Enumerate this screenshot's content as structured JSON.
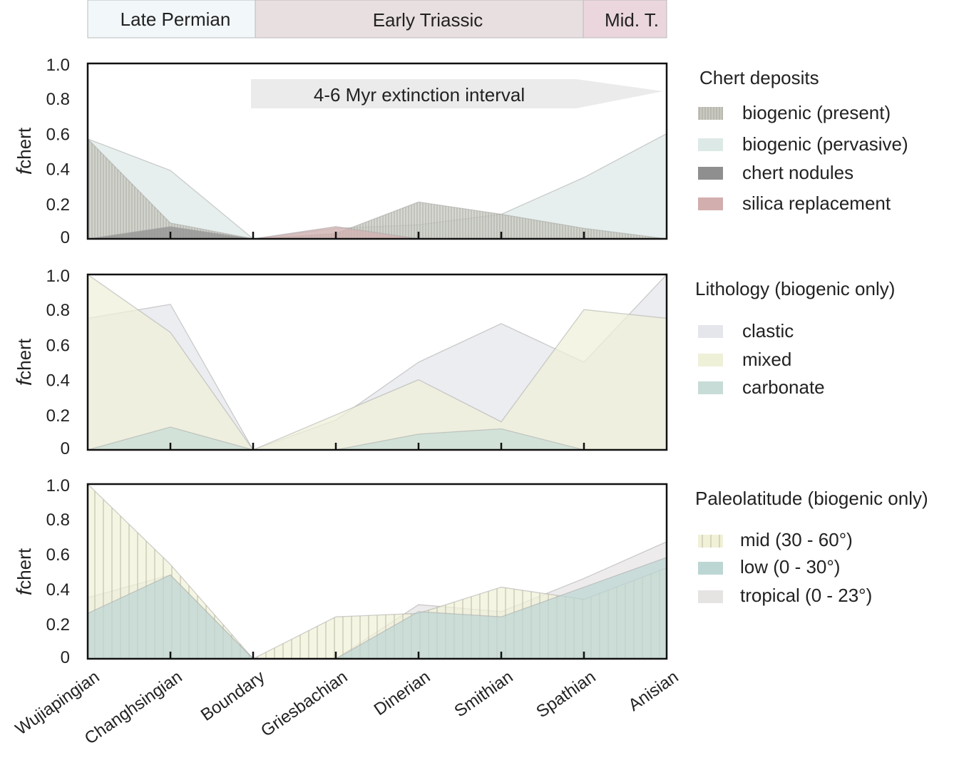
{
  "colors": {
    "biogenic_present": "#c9c9c0",
    "biogenic_pervasive": "#dce9e6",
    "chert_nodules": "#8f8f8f",
    "silica_replacement": "#d3aeae",
    "clastic": "#e4e6ec",
    "mixed": "#eff0d8",
    "carbonate": "#c7dcd7",
    "mid": "#f1f1d8",
    "low": "#bcd6d3",
    "tropical": "#e6e3e3",
    "late_permian": "#f2f7fa",
    "early_triassic": "#e8dfe0",
    "mid_triassic": "#ead6dc"
  },
  "periods": [
    {
      "label": "Late Permian",
      "color_key": "late_permian"
    },
    {
      "label": "Early Triassic",
      "color_key": "early_triassic"
    },
    {
      "label": "Mid. T.",
      "color_key": "mid_triassic"
    }
  ],
  "chart_data": [
    {
      "type": "area",
      "panel": "top",
      "ylabel_italic": "f",
      "ylabel_rest": "chert",
      "ylim": [
        0,
        1
      ],
      "yticks": [
        "0",
        "0.2",
        "0.4",
        "0.6",
        "0.8",
        "1.0"
      ],
      "categories": [
        "Wujiapingian",
        "Changhsingian",
        "Boundary",
        "Griesbachian",
        "Dinerian",
        "Smithian",
        "Spathian",
        "Anisian"
      ],
      "annotation": "4-6 Myr extinction interval",
      "legend_title": "Chert deposits",
      "legend_placement": "right",
      "series": [
        {
          "name": "biogenic (pervasive)",
          "color_key": "biogenic_pervasive",
          "values": [
            0.57,
            0.39,
            0.0,
            0.06,
            0.08,
            0.14,
            0.35,
            0.6
          ]
        },
        {
          "name": "biogenic (present)",
          "color_key": "biogenic_present",
          "hatch": true,
          "values": [
            0.57,
            0.09,
            0.0,
            0.03,
            0.21,
            0.14,
            0.06,
            0.0
          ]
        },
        {
          "name": "chert nodules",
          "color_key": "chert_nodules",
          "values": [
            0.0,
            0.07,
            0.0,
            0.0,
            0.0,
            0.0,
            0.0,
            0.0
          ]
        },
        {
          "name": "silica replacement",
          "color_key": "silica_replacement",
          "values": [
            0.0,
            0.0,
            0.0,
            0.07,
            0.0,
            0.0,
            0.0,
            0.0
          ]
        }
      ]
    },
    {
      "type": "area",
      "panel": "middle",
      "ylabel_italic": "f",
      "ylabel_rest": "chert",
      "ylim": [
        0,
        1
      ],
      "yticks": [
        "0",
        "0.2",
        "0.4",
        "0.6",
        "0.8",
        "1.0"
      ],
      "categories": [
        "Wujiapingian",
        "Changhsingian",
        "Boundary",
        "Griesbachian",
        "Dinerian",
        "Smithian",
        "Spathian",
        "Anisian"
      ],
      "legend_title": "Lithology (biogenic only)",
      "legend_placement": "right",
      "series": [
        {
          "name": "clastic",
          "color_key": "clastic",
          "values": [
            0.75,
            0.83,
            0.0,
            0.17,
            0.5,
            0.72,
            0.5,
            1.0
          ]
        },
        {
          "name": "mixed",
          "color_key": "mixed",
          "values": [
            1.0,
            0.67,
            0.0,
            0.2,
            0.4,
            0.16,
            0.8,
            0.75
          ]
        },
        {
          "name": "carbonate",
          "color_key": "carbonate",
          "values": [
            0.0,
            0.13,
            0.0,
            0.0,
            0.09,
            0.12,
            0.0,
            0.0
          ]
        }
      ]
    },
    {
      "type": "area",
      "panel": "bottom",
      "ylabel_italic": "f",
      "ylabel_rest": "chert",
      "ylim": [
        0,
        1
      ],
      "yticks": [
        "0",
        "0.2",
        "0.4",
        "0.6",
        "0.8",
        "1.0"
      ],
      "categories": [
        "Wujiapingian",
        "Changhsingian",
        "Boundary",
        "Griesbachian",
        "Dinerian",
        "Smithian",
        "Spathian",
        "Anisian"
      ],
      "legend_title": "Paleolatitude (biogenic only)",
      "legend_placement": "right",
      "series": [
        {
          "name": "tropical (0 - 23°)",
          "color_key": "tropical",
          "values": [
            0.35,
            0.48,
            0.0,
            0.0,
            0.31,
            0.27,
            0.46,
            0.67
          ]
        },
        {
          "name": "mid (30 - 60°)",
          "color_key": "mid",
          "hatch": true,
          "values": [
            1.0,
            0.54,
            0.0,
            0.24,
            0.26,
            0.41,
            0.34,
            0.52
          ]
        },
        {
          "name": "low (0 - 30°)",
          "color_key": "low",
          "values": [
            0.26,
            0.48,
            0.0,
            0.0,
            0.27,
            0.24,
            0.41,
            0.58
          ]
        }
      ]
    }
  ]
}
